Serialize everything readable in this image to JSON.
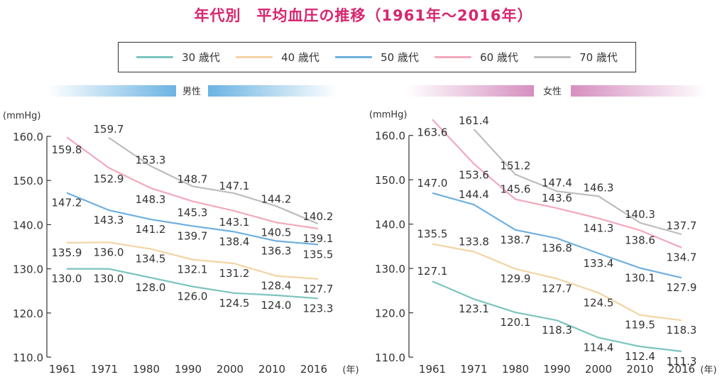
{
  "title": "年代別　平均血圧の推移（1961年〜2016年）",
  "legend": [
    {
      "label": "30 歳代",
      "color": "#7cc4bf"
    },
    {
      "label": "40 歳代",
      "color": "#f3d4a3"
    },
    {
      "label": "50 歳代",
      "color": "#6fb0e0"
    },
    {
      "label": "60 歳代",
      "color": "#f2a9bb"
    },
    {
      "label": "70 歳代",
      "color": "#bdbdbd"
    }
  ],
  "banners": {
    "male": {
      "label": "男性",
      "color": "#6bb3e3"
    },
    "female": {
      "label": "女性",
      "color": "#d68fc0"
    }
  },
  "unit_label": "(mmHg)",
  "x_unit_label": "(年)",
  "chart_data": [
    {
      "type": "line",
      "panel": "男性",
      "x": [
        "1961",
        "1971",
        "1980",
        "1990",
        "2000",
        "2010",
        "2016"
      ],
      "ylim": [
        110,
        160
      ],
      "yticks": [
        "110.0",
        "120.0",
        "130.0",
        "140.0",
        "150.0",
        "160.0"
      ],
      "series": [
        {
          "name": "30 歳代",
          "values": [
            130.0,
            130.0,
            128.0,
            126.0,
            124.5,
            124.0,
            123.3
          ],
          "labels": [
            "130.0",
            "130.0",
            "128.0",
            "126.0",
            "124.5",
            "124.0",
            "123.3"
          ]
        },
        {
          "name": "40 歳代",
          "values": [
            135.9,
            136.0,
            134.5,
            132.1,
            131.2,
            128.4,
            127.7
          ],
          "labels": [
            "135.9",
            "136.0",
            "134.5",
            "132.1",
            "131.2",
            "128.4",
            "127.7"
          ]
        },
        {
          "name": "50 歳代",
          "values": [
            147.2,
            143.3,
            141.2,
            139.7,
            138.4,
            136.3,
            135.5
          ],
          "labels": [
            "147.2",
            "143.3",
            "141.2",
            "139.7",
            "138.4",
            "136.3",
            "135.5"
          ]
        },
        {
          "name": "60 歳代",
          "values": [
            159.8,
            152.9,
            148.3,
            145.3,
            143.1,
            140.5,
            139.1
          ],
          "labels": [
            "159.8",
            "152.9",
            "148.3",
            "145.3",
            "143.1",
            "140.5",
            "139.1"
          ]
        },
        {
          "name": "70 歳代",
          "values": [
            null,
            159.7,
            153.3,
            148.7,
            147.1,
            144.2,
            140.2
          ],
          "labels": [
            null,
            "159.7",
            "153.3",
            "148.7",
            "147.1",
            "144.2",
            "140.2"
          ]
        }
      ]
    },
    {
      "type": "line",
      "panel": "女性",
      "x": [
        "1961",
        "1971",
        "1980",
        "1990",
        "2000",
        "2010",
        "2016"
      ],
      "ylim": [
        110,
        163
      ],
      "yticks": [
        "110.0",
        "120.0",
        "130.0",
        "140.0",
        "150.0",
        "160.0"
      ],
      "series": [
        {
          "name": "30 歳代",
          "values": [
            127.1,
            123.1,
            120.1,
            118.3,
            114.4,
            112.4,
            111.3
          ],
          "labels": [
            "127.1",
            "123.1",
            "120.1",
            "118.3",
            "114.4",
            "112.4",
            "111.3"
          ]
        },
        {
          "name": "40 歳代",
          "values": [
            135.5,
            133.8,
            129.9,
            127.7,
            124.5,
            119.5,
            118.3
          ],
          "labels": [
            "135.5",
            "133.8",
            "129.9",
            "127.7",
            "124.5",
            "119.5",
            "118.3"
          ]
        },
        {
          "name": "50 歳代",
          "values": [
            147.0,
            144.4,
            138.7,
            136.8,
            133.4,
            130.1,
            127.9
          ],
          "labels": [
            "147.0",
            "144.4",
            "138.7",
            "136.8",
            "133.4",
            "130.1",
            "127.9"
          ]
        },
        {
          "name": "60 歳代",
          "values": [
            163.6,
            153.6,
            145.6,
            143.6,
            141.3,
            138.6,
            134.7
          ],
          "labels": [
            "163.6",
            "153.6",
            "145.6",
            "143.6",
            "141.3",
            "138.6",
            "134.7"
          ]
        },
        {
          "name": "70 歳代",
          "values": [
            null,
            161.4,
            151.2,
            147.4,
            146.3,
            140.3,
            137.7
          ],
          "labels": [
            null,
            "161.4",
            "151.2",
            "147.4",
            "146.3",
            "140.3",
            "137.7"
          ]
        }
      ]
    }
  ]
}
